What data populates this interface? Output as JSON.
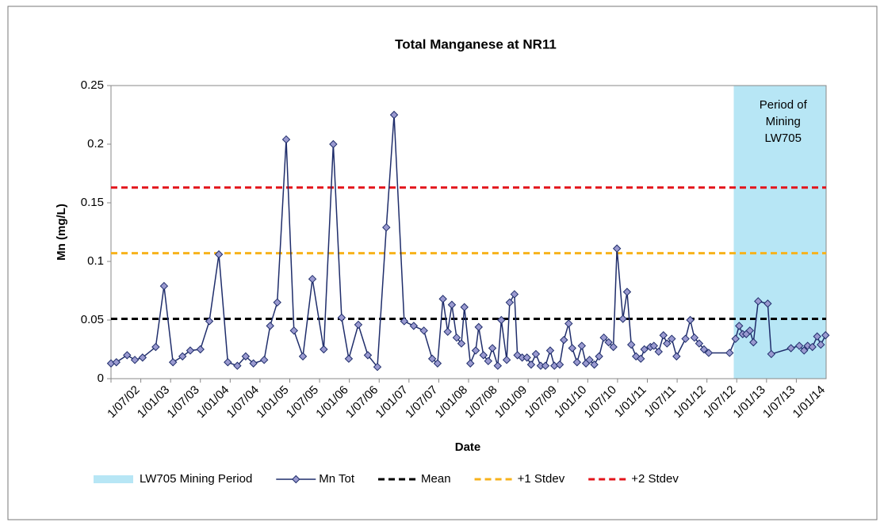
{
  "chart_data": {
    "type": "line",
    "title": "Total Manganese at NR11",
    "x_label": "Date",
    "y_label": "Mn (mg/L)",
    "xlim": [
      2002.5,
      2014.5
    ],
    "xticks": [
      {
        "value": 2002.5,
        "label": "1/07/02"
      },
      {
        "value": 2003.0,
        "label": "1/01/03"
      },
      {
        "value": 2003.5,
        "label": "1/07/03"
      },
      {
        "value": 2004.0,
        "label": "1/01/04"
      },
      {
        "value": 2004.5,
        "label": "1/07/04"
      },
      {
        "value": 2005.0,
        "label": "1/01/05"
      },
      {
        "value": 2005.5,
        "label": "1/07/05"
      },
      {
        "value": 2006.0,
        "label": "1/01/06"
      },
      {
        "value": 2006.5,
        "label": "1/07/06"
      },
      {
        "value": 2007.0,
        "label": "1/01/07"
      },
      {
        "value": 2007.5,
        "label": "1/07/07"
      },
      {
        "value": 2008.0,
        "label": "1/01/08"
      },
      {
        "value": 2008.5,
        "label": "1/07/08"
      },
      {
        "value": 2009.0,
        "label": "1/01/09"
      },
      {
        "value": 2009.5,
        "label": "1/07/09"
      },
      {
        "value": 2010.0,
        "label": "1/01/10"
      },
      {
        "value": 2010.5,
        "label": "1/07/10"
      },
      {
        "value": 2011.0,
        "label": "1/01/11"
      },
      {
        "value": 2011.5,
        "label": "1/07/11"
      },
      {
        "value": 2012.0,
        "label": "1/01/12"
      },
      {
        "value": 2012.5,
        "label": "1/07/12"
      },
      {
        "value": 2013.0,
        "label": "1/01/13"
      },
      {
        "value": 2013.5,
        "label": "1/07/13"
      },
      {
        "value": 2014.0,
        "label": "1/01/14"
      }
    ],
    "ylim": [
      0,
      0.25
    ],
    "yticks": [
      0,
      0.05,
      0.1,
      0.15,
      0.2,
      0.25
    ],
    "grid": false,
    "mining_period": {
      "name": "LW705 Mining Period",
      "color": "#b7e6f5",
      "x": [
        2012.95,
        2014.5
      ],
      "annotation": [
        "Period of",
        "Mining",
        "LW705"
      ]
    },
    "series": [
      {
        "name": "Mn Tot",
        "color": "#1f2d6b",
        "marker_color": "#9a9ad0",
        "x": [
          2002.5,
          2002.59,
          2002.77,
          2002.9,
          2003.03,
          2003.25,
          2003.39,
          2003.54,
          2003.7,
          2003.83,
          2004.0,
          2004.15,
          2004.31,
          2004.46,
          2004.62,
          2004.76,
          2004.89,
          2005.07,
          2005.17,
          2005.29,
          2005.44,
          2005.57,
          2005.72,
          2005.88,
          2006.07,
          2006.23,
          2006.37,
          2006.49,
          2006.65,
          2006.81,
          2006.97,
          2007.12,
          2007.25,
          2007.42,
          2007.58,
          2007.75,
          2007.89,
          2007.98,
          2008.07,
          2008.15,
          2008.22,
          2008.3,
          2008.38,
          2008.43,
          2008.53,
          2008.62,
          2008.67,
          2008.75,
          2008.83,
          2008.9,
          2008.99,
          2009.05,
          2009.14,
          2009.19,
          2009.27,
          2009.32,
          2009.4,
          2009.48,
          2009.55,
          2009.63,
          2009.71,
          2009.79,
          2009.87,
          2009.94,
          2010.03,
          2010.1,
          2010.18,
          2010.24,
          2010.32,
          2010.4,
          2010.47,
          2010.53,
          2010.61,
          2010.69,
          2010.77,
          2010.85,
          2010.93,
          2010.99,
          2011.09,
          2011.16,
          2011.23,
          2011.31,
          2011.39,
          2011.45,
          2011.55,
          2011.61,
          2011.69,
          2011.77,
          2011.83,
          2011.91,
          2011.99,
          2012.14,
          2012.22,
          2012.29,
          2012.37,
          2012.45,
          2012.53,
          2012.88,
          2012.98,
          2013.04,
          2013.1,
          2013.16,
          2013.22,
          2013.28,
          2013.36,
          2013.52,
          2013.58,
          2013.91,
          2014.05,
          2014.13,
          2014.19,
          2014.27,
          2014.35,
          2014.41,
          2014.49
        ],
        "values": [
          0.013,
          0.014,
          0.02,
          0.016,
          0.018,
          0.027,
          0.079,
          0.014,
          0.019,
          0.024,
          0.025,
          0.049,
          0.106,
          0.014,
          0.011,
          0.019,
          0.013,
          0.016,
          0.045,
          0.065,
          0.204,
          0.041,
          0.019,
          0.085,
          0.025,
          0.2,
          0.052,
          0.017,
          0.046,
          0.02,
          0.01,
          0.129,
          0.225,
          0.049,
          0.045,
          0.041,
          0.017,
          0.013,
          0.068,
          0.04,
          0.063,
          0.035,
          0.03,
          0.061,
          0.013,
          0.024,
          0.044,
          0.02,
          0.015,
          0.026,
          0.011,
          0.05,
          0.016,
          0.065,
          0.072,
          0.02,
          0.018,
          0.018,
          0.012,
          0.021,
          0.011,
          0.011,
          0.024,
          0.011,
          0.012,
          0.033,
          0.047,
          0.026,
          0.014,
          0.028,
          0.013,
          0.016,
          0.012,
          0.019,
          0.035,
          0.031,
          0.027,
          0.111,
          0.051,
          0.074,
          0.029,
          0.019,
          0.017,
          0.025,
          0.027,
          0.028,
          0.023,
          0.037,
          0.03,
          0.034,
          0.019,
          0.034,
          0.05,
          0.035,
          0.03,
          0.025,
          0.022,
          0.022,
          0.034,
          0.045,
          0.038,
          0.038,
          0.041,
          0.031,
          0.066,
          0.064,
          0.021,
          0.026,
          0.028,
          0.024,
          0.028,
          0.027,
          0.036,
          0.029,
          0.037
        ]
      }
    ],
    "reference_lines": [
      {
        "name": "Mean",
        "color": "#000000",
        "value": 0.051
      },
      {
        "name": "+1 Stdev",
        "color": "#f7b21b",
        "value": 0.107
      },
      {
        "name": "+2 Stdev",
        "color": "#e3141b",
        "value": 0.163
      }
    ]
  }
}
